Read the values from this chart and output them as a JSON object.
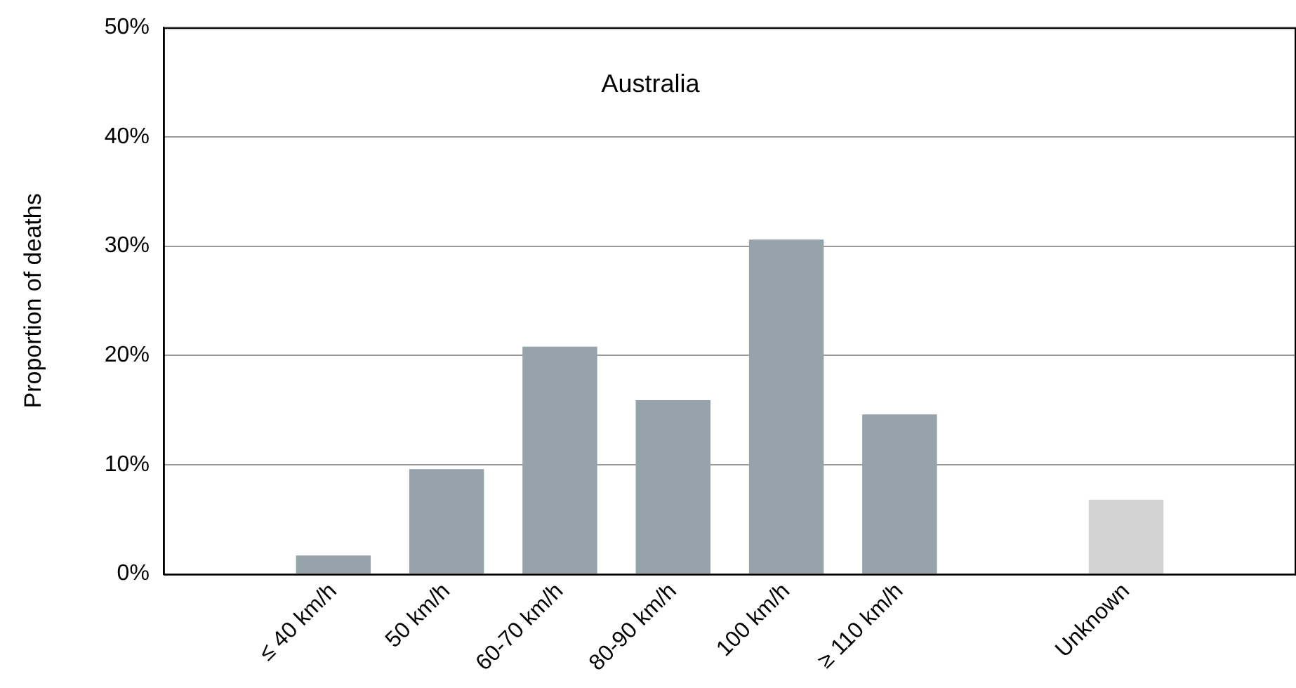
{
  "chart_data": {
    "type": "bar",
    "ylabel": "Proportion of deaths",
    "annotations": [
      "Australia"
    ],
    "categories": [
      null,
      "≤ 40 km/h",
      "50 km/h",
      "60-70 km/h",
      "80-90 km/h",
      "100 km/h",
      "≥ 110 km/h",
      null,
      "Unknown",
      null
    ],
    "values": [
      null,
      1.7,
      9.6,
      20.8,
      15.9,
      30.6,
      14.6,
      null,
      6.8,
      null
    ],
    "colors": [
      "#97a3ab",
      "#97a3ab",
      "#97a3ab",
      "#97a3ab",
      "#97a3ab",
      "#97a3ab",
      "#97a3ab",
      "#97a3ab",
      "#d2d2d2",
      "#97a3ab"
    ],
    "ylim": [
      0,
      50
    ],
    "yticks": [
      {
        "value": 0,
        "label": "0%"
      },
      {
        "value": 10,
        "label": "10%"
      },
      {
        "value": 20,
        "label": "20%"
      },
      {
        "value": 30,
        "label": "30%"
      },
      {
        "value": 40,
        "label": "40%"
      },
      {
        "value": 50,
        "label": "50%"
      }
    ],
    "grid": "y",
    "legend": false
  }
}
